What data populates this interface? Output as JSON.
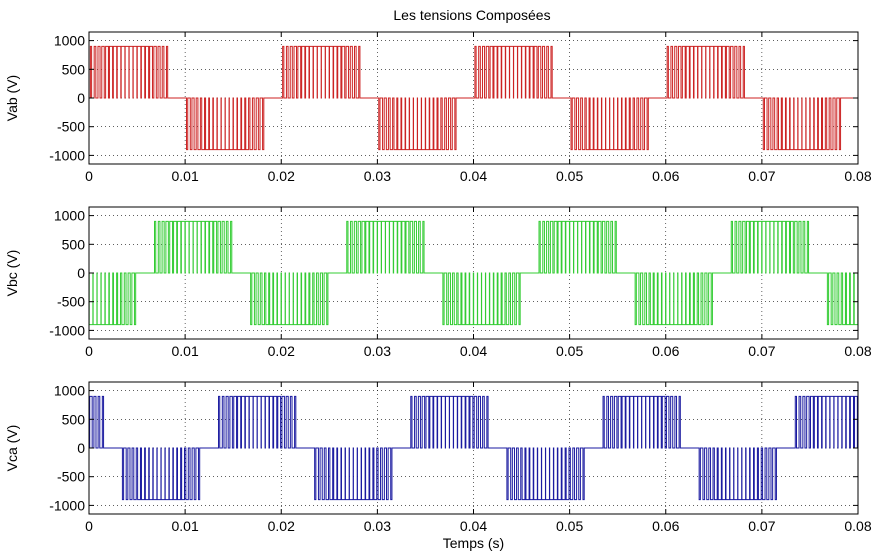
{
  "title": "Les tensions Composées",
  "chart_data": [
    {
      "type": "line",
      "name": "vab-panel",
      "ylabel": "Vab (V)",
      "xlabel": "",
      "color": "#cc2222",
      "xlim": [
        0,
        0.08
      ],
      "ylim": [
        -1150,
        1150
      ],
      "xticks": [
        0,
        0.01,
        0.02,
        0.03,
        0.04,
        0.05,
        0.06,
        0.07,
        0.08
      ],
      "xtick_labels": [
        "0",
        "0.01",
        "0.02",
        "0.03",
        "0.04",
        "0.05",
        "0.06",
        "0.07",
        "0.08"
      ],
      "yticks": [
        -1000,
        -500,
        0,
        500,
        1000
      ],
      "ytick_labels": [
        "-1000",
        "-500",
        "0",
        "500",
        "1000"
      ],
      "grid": true,
      "waveform": {
        "amplitude": 900,
        "fundamental_period": 0.02,
        "phase_offset": 0.0,
        "pulses_per_half_cycle": 20,
        "active_fraction_of_half_cycle": 0.833
      }
    },
    {
      "type": "line",
      "name": "vbc-panel",
      "ylabel": "Vbc (V)",
      "xlabel": "",
      "color": "#33cc33",
      "xlim": [
        0,
        0.08
      ],
      "ylim": [
        -1150,
        1150
      ],
      "xticks": [
        0,
        0.01,
        0.02,
        0.03,
        0.04,
        0.05,
        0.06,
        0.07,
        0.08
      ],
      "xtick_labels": [
        "0",
        "0.01",
        "0.02",
        "0.03",
        "0.04",
        "0.05",
        "0.06",
        "0.07",
        "0.08"
      ],
      "yticks": [
        -1000,
        -500,
        0,
        500,
        1000
      ],
      "ytick_labels": [
        "-1000",
        "-500",
        "0",
        "500",
        "1000"
      ],
      "grid": true,
      "waveform": {
        "amplitude": 900,
        "fundamental_period": 0.02,
        "phase_offset": 0.00667,
        "pulses_per_half_cycle": 20,
        "active_fraction_of_half_cycle": 0.833
      }
    },
    {
      "type": "line",
      "name": "vca-panel",
      "ylabel": "Vca (V)",
      "xlabel": "Temps (s)",
      "color": "#1a1aa0",
      "xlim": [
        0,
        0.08
      ],
      "ylim": [
        -1150,
        1150
      ],
      "xticks": [
        0,
        0.01,
        0.02,
        0.03,
        0.04,
        0.05,
        0.06,
        0.07,
        0.08
      ],
      "xtick_labels": [
        "0",
        "0.01",
        "0.02",
        "0.03",
        "0.04",
        "0.05",
        "0.06",
        "0.07",
        "0.08"
      ],
      "yticks": [
        -1000,
        -500,
        0,
        500,
        1000
      ],
      "ytick_labels": [
        "-1000",
        "-500",
        "0",
        "500",
        "1000"
      ],
      "grid": true,
      "waveform": {
        "amplitude": 900,
        "fundamental_period": 0.02,
        "phase_offset": 0.01333,
        "pulses_per_half_cycle": 20,
        "active_fraction_of_half_cycle": 0.833
      }
    }
  ]
}
